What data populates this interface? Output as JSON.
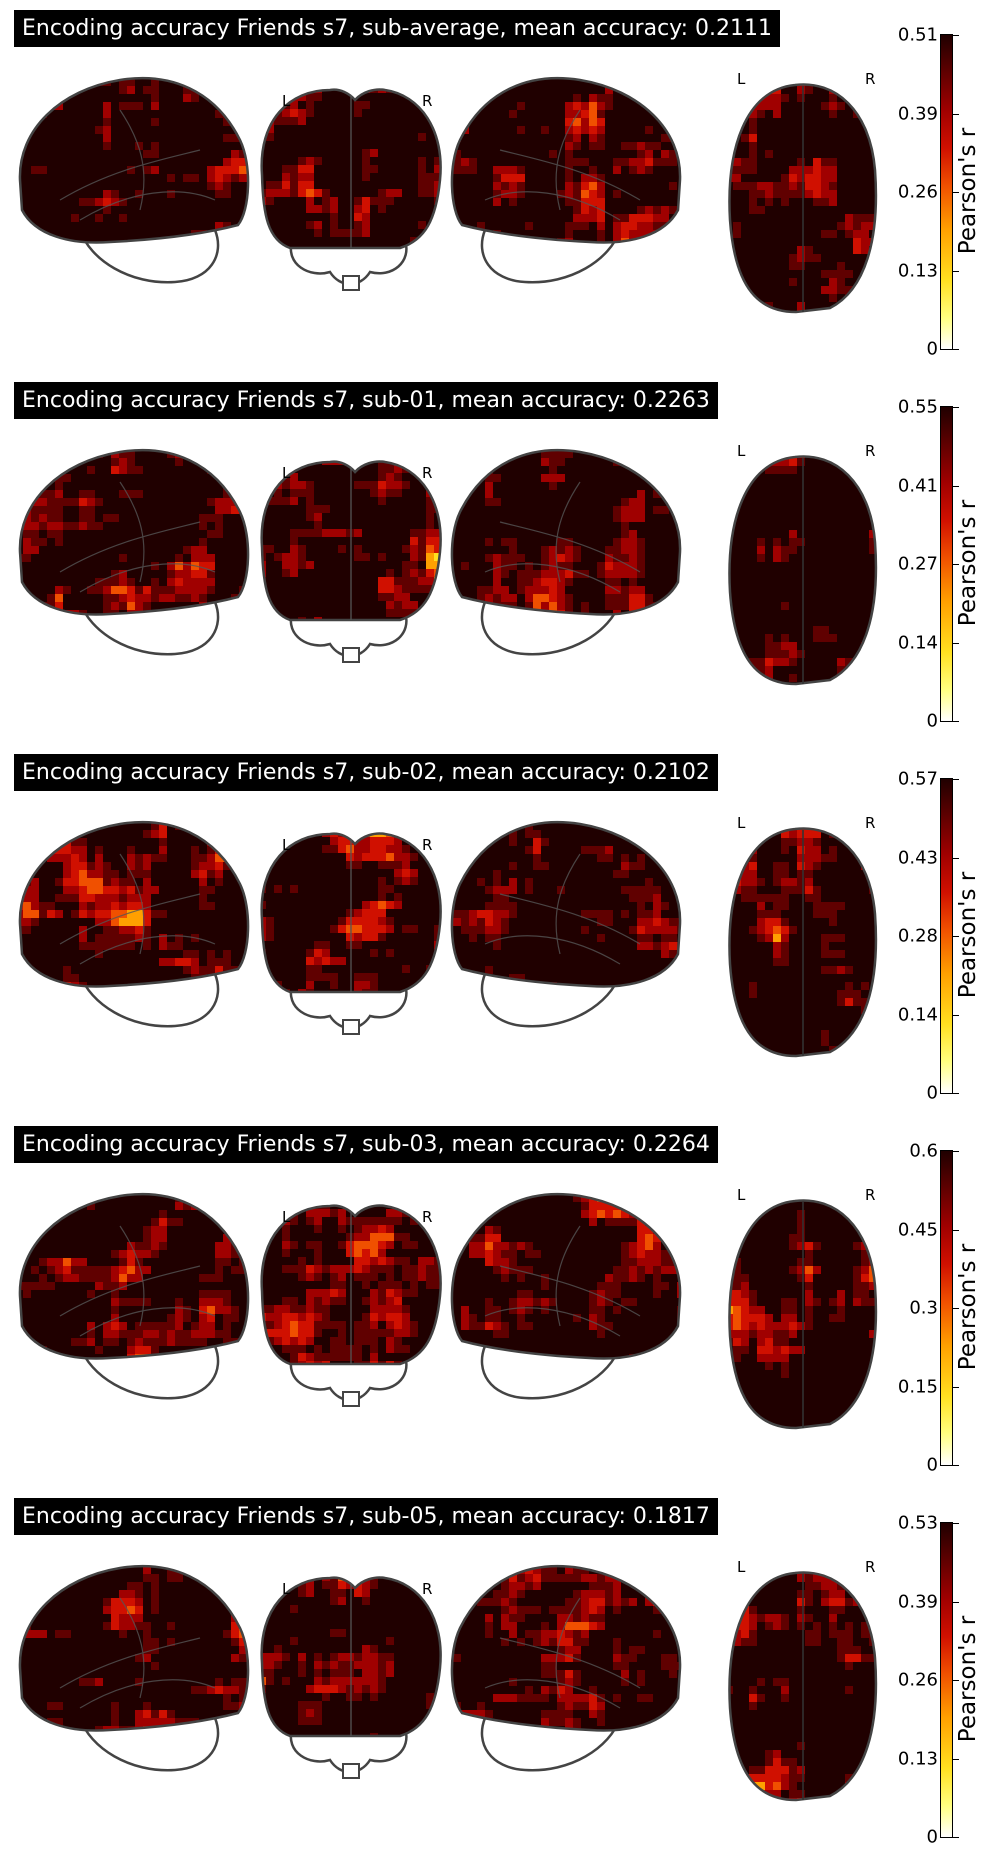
{
  "panels": [
    {
      "title": "Encoding accuracy Friends s7, sub-average, mean accuracy: 0.2111",
      "ticks": [
        "0",
        "0.13",
        "0.26",
        "0.39",
        "0.51"
      ]
    },
    {
      "title": "Encoding accuracy Friends s7, sub-01, mean accuracy: 0.2263",
      "ticks": [
        "0",
        "0.14",
        "0.27",
        "0.41",
        "0.55"
      ]
    },
    {
      "title": "Encoding accuracy Friends s7, sub-02, mean accuracy: 0.2102",
      "ticks": [
        "0",
        "0.14",
        "0.28",
        "0.43",
        "0.57"
      ]
    },
    {
      "title": "Encoding accuracy Friends s7, sub-03, mean accuracy: 0.2264",
      "ticks": [
        "0",
        "0.15",
        "0.3",
        "0.45",
        "0.6"
      ]
    },
    {
      "title": "Encoding accuracy Friends s7, sub-05, mean accuracy: 0.1817",
      "ticks": [
        "0",
        "0.13",
        "0.26",
        "0.39",
        "0.53"
      ]
    }
  ],
  "colorbar_label": "Pearson's r",
  "hemisphere_labels": {
    "left": "L",
    "right": "R"
  },
  "colormap": [
    "#ffffff",
    "#ffff80",
    "#ffe020",
    "#ffa000",
    "#f05000",
    "#d01000",
    "#a00000",
    "#600000",
    "#200000"
  ]
}
